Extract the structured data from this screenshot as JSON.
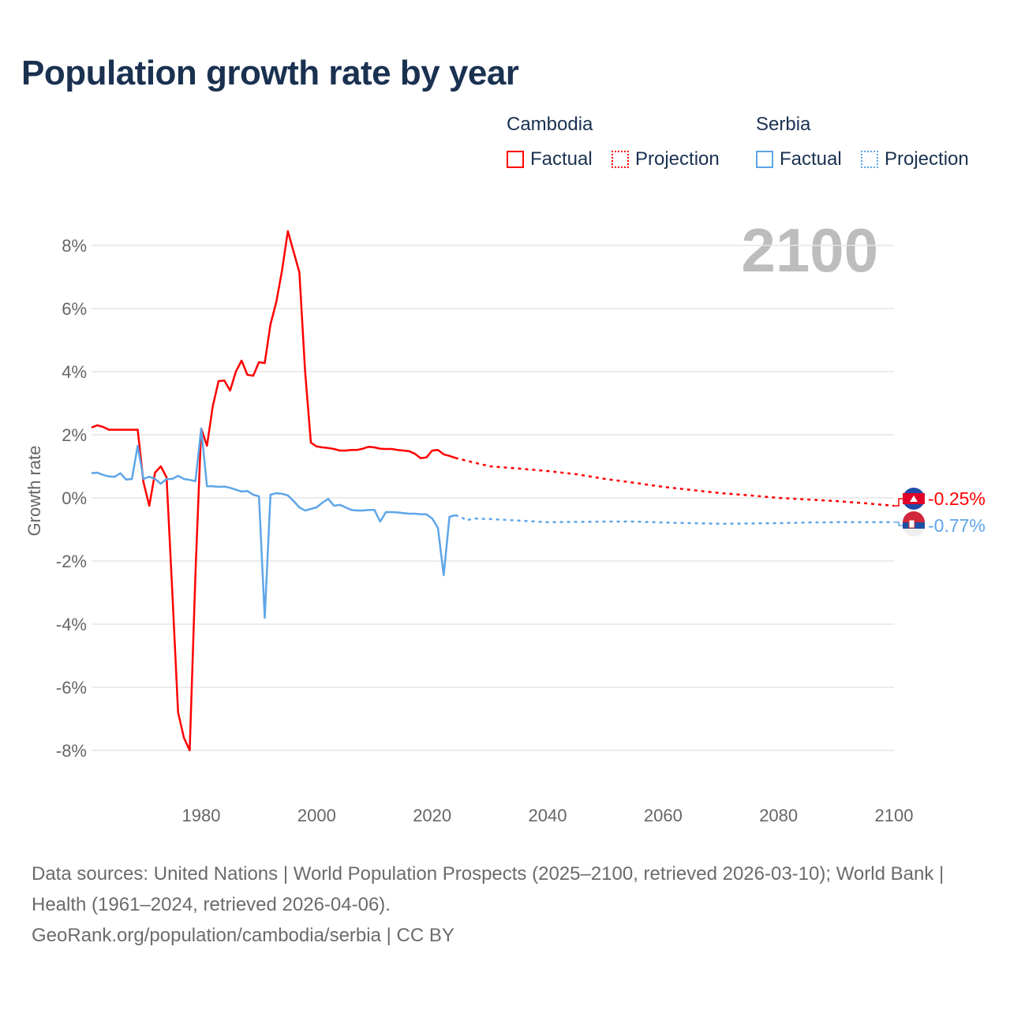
{
  "title": "Population growth rate by year",
  "legend": {
    "cambodia": {
      "name": "Cambodia",
      "factual": "Factual",
      "projection": "Projection",
      "color": "#ff0000"
    },
    "serbia": {
      "name": "Serbia",
      "factual": "Factual",
      "projection": "Projection",
      "color": "#5ea5e8"
    }
  },
  "current_year": "2100",
  "footer": {
    "sources": "Data sources: United Nations | World Population Prospects (2025–2100, retrieved 2026-03-10); World Bank | Health (1961–2024, retrieved 2026-04-06).",
    "attribution": "GeoRank.org/population/cambodia/serbia | CC BY"
  },
  "chart_data": {
    "type": "line",
    "title": "Population growth rate by year",
    "xlabel": "",
    "ylabel": "Growth rate",
    "xlim": [
      1961,
      2100
    ],
    "ylim": [
      -10,
      10
    ],
    "xticks": [
      1980,
      2000,
      2020,
      2040,
      2060,
      2080,
      2100
    ],
    "yticks": [
      -8,
      -6,
      -4,
      -2,
      0,
      2,
      4,
      6,
      8
    ],
    "ytick_labels": [
      "-8%",
      "-6%",
      "-4%",
      "-2%",
      "0%",
      "2%",
      "4%",
      "6%",
      "8%"
    ],
    "grid": true,
    "end_labels": {
      "cambodia": "-0.25%",
      "serbia": "-0.77%"
    },
    "series": [
      {
        "name": "Cambodia",
        "kind": "factual",
        "x_start": 1961,
        "values": [
          2.23,
          2.3,
          2.25,
          2.16,
          2.16,
          2.16,
          2.16,
          2.16,
          2.16,
          0.5,
          -0.25,
          0.8,
          1.0,
          0.65,
          -3.0,
          -6.8,
          -7.6,
          -8.0,
          -2.4,
          2.2,
          1.65,
          2.9,
          3.7,
          3.72,
          3.4,
          4.0,
          4.35,
          3.9,
          3.87,
          4.3,
          4.27,
          5.5,
          6.2,
          7.2,
          8.45,
          7.8,
          7.15,
          4.0,
          1.75,
          1.63,
          1.6,
          1.58,
          1.55,
          1.5,
          1.5,
          1.52,
          1.52,
          1.56,
          1.62,
          1.6,
          1.56,
          1.55,
          1.55,
          1.52,
          1.5,
          1.48,
          1.4,
          1.26,
          1.28,
          1.5,
          1.52,
          1.38,
          1.33,
          1.27
        ]
      },
      {
        "name": "Cambodia",
        "kind": "projection",
        "x": [
          2024,
          2025,
          2030,
          2035,
          2040,
          2045,
          2050,
          2055,
          2060,
          2065,
          2070,
          2075,
          2080,
          2085,
          2090,
          2095,
          2100
        ],
        "values": [
          1.27,
          1.22,
          1.0,
          0.93,
          0.85,
          0.75,
          0.6,
          0.48,
          0.35,
          0.25,
          0.15,
          0.08,
          0.0,
          -0.05,
          -0.1,
          -0.17,
          -0.25
        ]
      },
      {
        "name": "Serbia",
        "kind": "factual",
        "x_start": 1961,
        "values": [
          0.78,
          0.8,
          0.73,
          0.68,
          0.67,
          0.78,
          0.58,
          0.6,
          1.65,
          0.6,
          0.67,
          0.6,
          0.45,
          0.6,
          0.6,
          0.7,
          0.6,
          0.57,
          0.53,
          2.2,
          0.37,
          0.37,
          0.35,
          0.36,
          0.32,
          0.26,
          0.2,
          0.22,
          0.1,
          0.05,
          -3.8,
          0.1,
          0.15,
          0.13,
          0.08,
          -0.1,
          -0.3,
          -0.4,
          -0.35,
          -0.3,
          -0.15,
          -0.03,
          -0.25,
          -0.22,
          -0.3,
          -0.38,
          -0.4,
          -0.4,
          -0.38,
          -0.38,
          -0.75,
          -0.45,
          -0.45,
          -0.46,
          -0.48,
          -0.5,
          -0.5,
          -0.52,
          -0.52,
          -0.65,
          -0.95,
          -2.45,
          -0.6,
          -0.55
        ]
      },
      {
        "name": "Serbia",
        "kind": "projection",
        "x": [
          2024,
          2025,
          2026,
          2027,
          2030,
          2035,
          2040,
          2045,
          2050,
          2055,
          2060,
          2065,
          2070,
          2075,
          2080,
          2085,
          2090,
          2095,
          2100
        ],
        "values": [
          -0.55,
          -0.6,
          -0.72,
          -0.65,
          -0.67,
          -0.72,
          -0.77,
          -0.76,
          -0.75,
          -0.75,
          -0.78,
          -0.8,
          -0.82,
          -0.81,
          -0.8,
          -0.78,
          -0.77,
          -0.77,
          -0.77
        ]
      }
    ]
  }
}
